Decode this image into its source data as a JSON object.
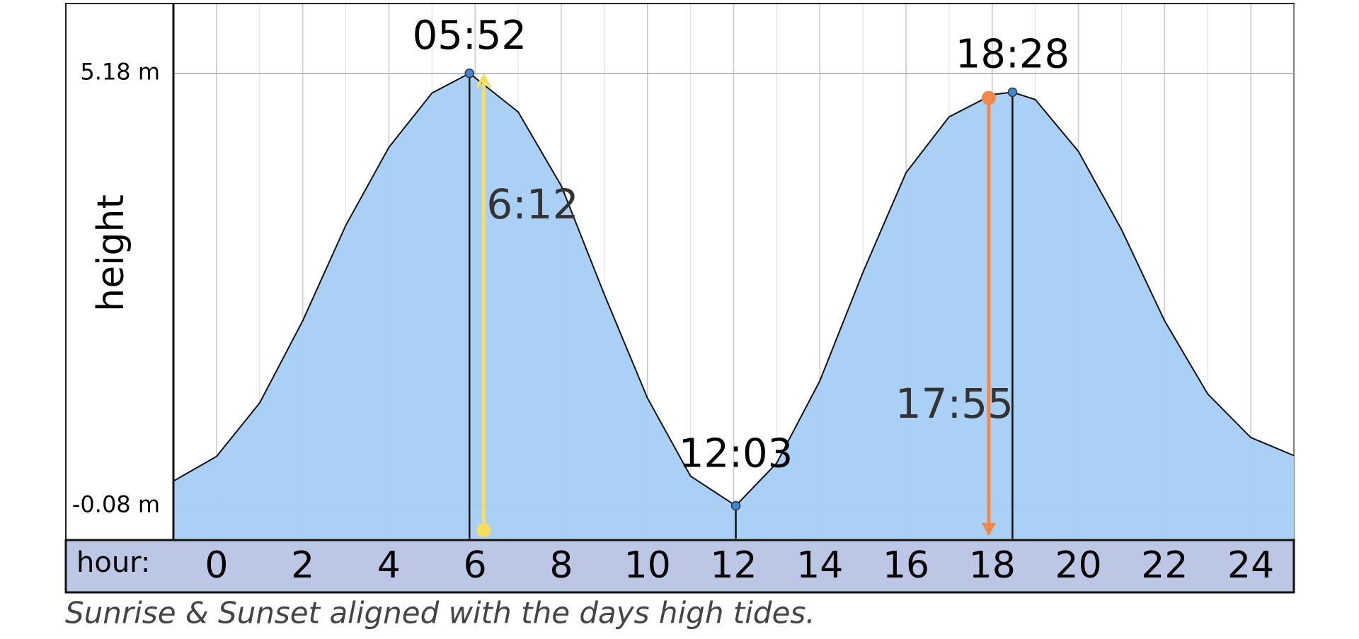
{
  "chart_data": {
    "type": "area",
    "y_label": "height",
    "x_label": "hour:",
    "caption": "Sunrise & Sunset aligned with the days high tides.",
    "xlim": [
      -1,
      25
    ],
    "ylim": [
      -0.48,
      6.02
    ],
    "xticks": [
      0,
      2,
      4,
      6,
      8,
      10,
      12,
      14,
      16,
      18,
      20,
      22,
      24
    ],
    "yticks": [
      {
        "value": 5.18,
        "label": "5.18 m"
      },
      {
        "value": -0.08,
        "label": "-0.08 m"
      }
    ],
    "grid": true,
    "series": [
      {
        "color": "#a6cdf5",
        "x": [
          -1,
          0,
          1,
          2,
          3,
          4,
          5,
          5.87,
          7,
          8,
          9,
          10,
          11,
          12.05,
          13,
          14,
          15,
          16,
          17,
          18,
          18.47,
          19,
          20,
          21,
          22,
          23,
          24,
          25
        ],
        "values": [
          0.22,
          0.52,
          1.17,
          2.17,
          3.33,
          4.28,
          4.94,
          5.18,
          4.71,
          3.81,
          2.49,
          1.23,
          0.28,
          -0.08,
          0.44,
          1.44,
          2.76,
          3.97,
          4.65,
          4.92,
          4.95,
          4.86,
          4.23,
          3.28,
          2.17,
          1.28,
          0.75,
          0.53
        ]
      }
    ],
    "tide_extremes": [
      {
        "label": "05:52",
        "x": 5.87,
        "value": 5.18
      },
      {
        "label": "12:03",
        "x": 12.05,
        "value": -0.08
      },
      {
        "label": "18:28",
        "x": 18.47,
        "value": 4.95
      }
    ],
    "sun_markers": [
      {
        "label": "6:12",
        "x": 6.2,
        "color": "#f8dc5e"
      },
      {
        "label": "17:55",
        "x": 17.92,
        "color": "#f2894c"
      }
    ]
  }
}
